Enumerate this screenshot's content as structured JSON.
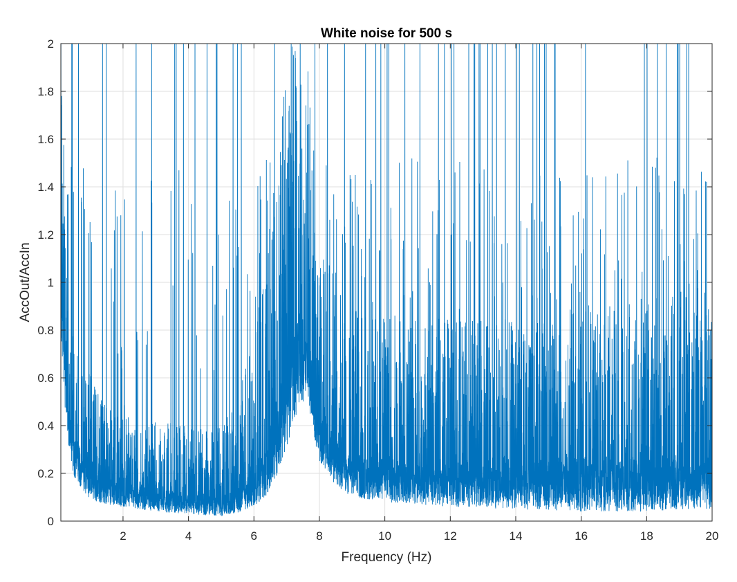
{
  "colors": {
    "series": "#0072BD",
    "grid": "#dfdfdf",
    "axis": "#262626",
    "background": "#ffffff"
  },
  "chart_data": {
    "type": "line",
    "title": "White noise for 500 s",
    "xlabel": "Frequency (Hz)",
    "ylabel": "AccOut/AccIn",
    "xlim": [
      0.1,
      20
    ],
    "ylim": [
      0,
      2
    ],
    "grid": true,
    "legend": "none",
    "x_ticks": [
      2,
      4,
      6,
      8,
      10,
      12,
      14,
      16,
      18,
      20
    ],
    "x_tick_labels": [
      "2",
      "4",
      "6",
      "8",
      "10",
      "12",
      "14",
      "16",
      "18",
      "20"
    ],
    "y_ticks": [
      0,
      0.2,
      0.4,
      0.6,
      0.8,
      1,
      1.2,
      1.4,
      1.6,
      1.8,
      2
    ],
    "y_tick_labels": [
      "0",
      "0.2",
      "0.4",
      "0.6",
      "0.8",
      "1",
      "1.2",
      "1.4",
      "1.6",
      "1.8",
      "2"
    ],
    "series": [
      {
        "sampling_note": "dense noisy transfer-function estimate; envelope sampled",
        "x": [
          0.1,
          0.3,
          0.5,
          1.0,
          1.5,
          2.0,
          3.0,
          4.0,
          4.5,
          5.0,
          5.5,
          6.0,
          6.5,
          7.0,
          7.2,
          7.4,
          7.6,
          8.0,
          8.5,
          9.0,
          10.0,
          12.0,
          14.0,
          16.0,
          18.0,
          19.0,
          20.0
        ],
        "lower": [
          0.7,
          0.35,
          0.18,
          0.09,
          0.07,
          0.06,
          0.04,
          0.03,
          0.025,
          0.02,
          0.03,
          0.06,
          0.12,
          0.3,
          0.4,
          0.5,
          0.5,
          0.25,
          0.15,
          0.1,
          0.08,
          0.06,
          0.05,
          0.04,
          0.04,
          0.05,
          0.05
        ],
        "median": [
          1.3,
          0.55,
          0.38,
          0.26,
          0.2,
          0.17,
          0.14,
          0.12,
          0.11,
          0.11,
          0.14,
          0.22,
          0.4,
          0.75,
          0.85,
          0.9,
          0.8,
          0.45,
          0.35,
          0.3,
          0.28,
          0.26,
          0.26,
          0.27,
          0.27,
          0.28,
          0.27
        ],
        "upper": [
          2.0,
          1.0,
          0.8,
          0.6,
          0.5,
          0.45,
          0.42,
          0.4,
          0.38,
          0.4,
          0.5,
          0.8,
          1.2,
          2.0,
          2.0,
          2.0,
          2.0,
          1.2,
          1.0,
          0.9,
          0.9,
          0.85,
          0.85,
          0.9,
          0.95,
          0.95,
          1.0
        ]
      }
    ]
  }
}
